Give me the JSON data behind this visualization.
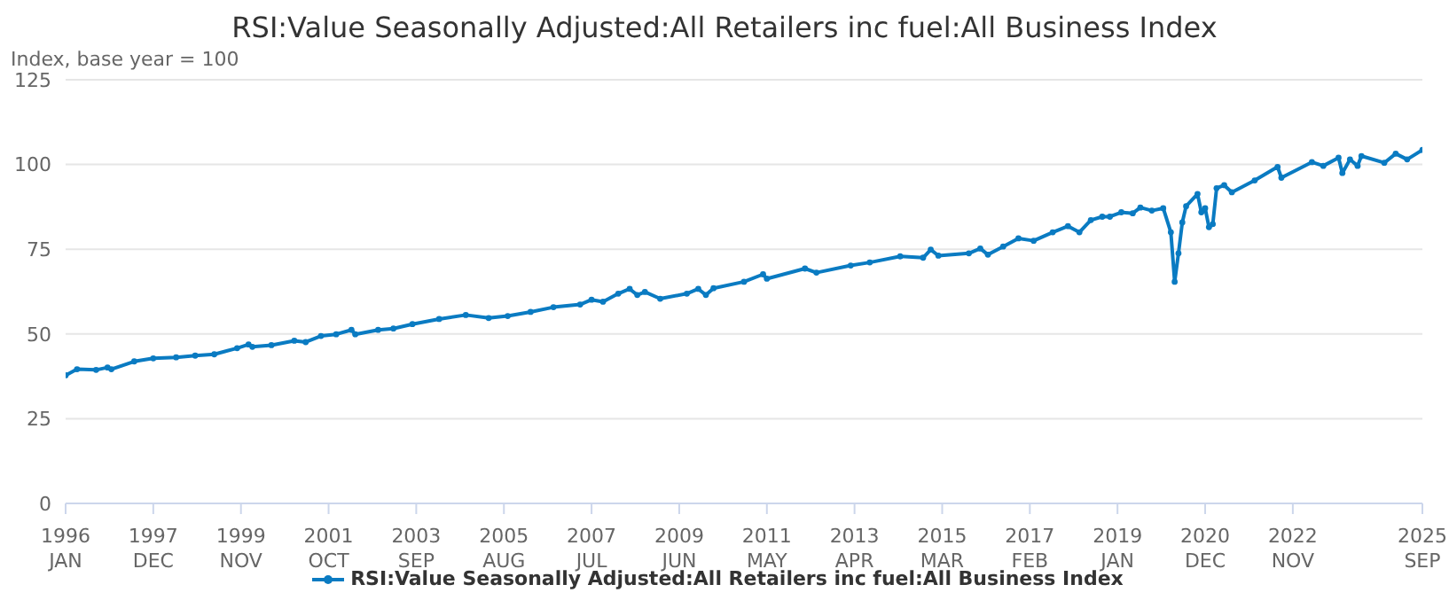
{
  "chart_data": {
    "type": "line",
    "title": "RSI:Value Seasonally Adjusted:All Retailers inc fuel:All Business Index",
    "ylabel": "Index, base year = 100",
    "x": [
      "1996-01",
      "1996-04",
      "1996-09",
      "1996-12",
      "1997-01",
      "1997-07",
      "1997-12",
      "1998-06",
      "1998-11",
      "1999-04",
      "1999-10",
      "2000-01",
      "2000-02",
      "2000-07",
      "2001-01",
      "2001-04",
      "2001-08",
      "2001-12",
      "2002-04",
      "2002-05",
      "2002-11",
      "2003-03",
      "2003-08",
      "2004-03",
      "2004-10",
      "2005-04",
      "2005-09",
      "2006-03",
      "2006-09",
      "2007-04",
      "2007-07",
      "2007-10",
      "2008-02",
      "2008-05",
      "2008-07",
      "2008-09",
      "2009-01",
      "2009-08",
      "2009-11",
      "2010-01",
      "2010-03",
      "2010-11",
      "2011-04",
      "2011-05",
      "2012-03",
      "2012-06",
      "2013-03",
      "2013-08",
      "2014-04",
      "2014-10",
      "2014-12",
      "2015-02",
      "2015-10",
      "2016-01",
      "2016-03",
      "2016-07",
      "2016-11",
      "2017-03",
      "2017-08",
      "2017-12",
      "2018-03",
      "2018-06",
      "2018-09",
      "2018-11",
      "2019-02",
      "2019-05",
      "2019-07",
      "2019-10",
      "2020-01",
      "2020-03",
      "2020-04",
      "2020-05",
      "2020-06",
      "2020-07",
      "2020-10",
      "2020-11",
      "2020-12",
      "2021-01",
      "2021-02",
      "2021-03",
      "2021-05",
      "2021-07",
      "2022-01",
      "2022-07",
      "2022-08",
      "2023-04",
      "2023-07",
      "2023-11",
      "2023-12",
      "2024-02",
      "2024-04",
      "2024-05",
      "2024-11",
      "2025-02",
      "2025-05",
      "2025-09"
    ],
    "series": [
      {
        "name": "RSI:Value Seasonally Adjusted:All Retailers inc fuel:All Business Index",
        "color": "#0a7bc2",
        "values": [
          37.8,
          39.6,
          39.4,
          40.1,
          39.6,
          41.9,
          42.8,
          43.1,
          43.6,
          44.0,
          45.8,
          46.9,
          46.2,
          46.7,
          48.0,
          47.6,
          49.4,
          49.9,
          51.2,
          49.9,
          51.2,
          51.6,
          52.9,
          54.4,
          55.6,
          54.7,
          55.3,
          56.5,
          57.9,
          58.7,
          60.1,
          59.5,
          61.9,
          63.3,
          61.5,
          62.4,
          60.4,
          61.9,
          63.3,
          61.5,
          63.5,
          65.4,
          67.6,
          66.3,
          69.3,
          68.1,
          70.2,
          71.1,
          72.9,
          72.5,
          74.9,
          73.1,
          73.8,
          75.2,
          73.4,
          75.8,
          78.2,
          77.5,
          80.0,
          81.8,
          80.0,
          83.6,
          84.6,
          84.6,
          85.9,
          85.6,
          87.3,
          86.4,
          87.1,
          80.0,
          65.4,
          73.8,
          82.9,
          87.7,
          91.3,
          85.9,
          87.1,
          81.5,
          82.4,
          93.0,
          93.9,
          91.8,
          95.3,
          99.3,
          96.1,
          100.7,
          99.6,
          102.0,
          97.5,
          101.5,
          99.6,
          102.5,
          100.5,
          103.2,
          101.5,
          104.3
        ]
      }
    ],
    "xlim": [
      "1996-01",
      "2025-09"
    ],
    "xticks": [
      {
        "value": "1996-01",
        "label": "1996 JAN"
      },
      {
        "value": "1997-12",
        "label": "1997 DEC"
      },
      {
        "value": "1999-11",
        "label": "1999 NOV"
      },
      {
        "value": "2001-10",
        "label": "2001 OCT"
      },
      {
        "value": "2003-09",
        "label": "2003 SEP"
      },
      {
        "value": "2005-08",
        "label": "2005 AUG"
      },
      {
        "value": "2007-07",
        "label": "2007 JUL"
      },
      {
        "value": "2009-06",
        "label": "2009 JUN"
      },
      {
        "value": "2011-05",
        "label": "2011 MAY"
      },
      {
        "value": "2013-04",
        "label": "2013 APR"
      },
      {
        "value": "2015-03",
        "label": "2015 MAR"
      },
      {
        "value": "2017-02",
        "label": "2017 FEB"
      },
      {
        "value": "2019-01",
        "label": "2019 JAN"
      },
      {
        "value": "2020-12",
        "label": "2020 DEC"
      },
      {
        "value": "2022-11",
        "label": "2022 NOV"
      },
      {
        "value": "2025-09",
        "label": "2025 SEP"
      }
    ],
    "ylim": [
      0,
      125
    ],
    "yticks": [
      0,
      25,
      50,
      75,
      100,
      125
    ],
    "grid": "y",
    "legend": "bottom",
    "marker": "circle",
    "line_style": "solid"
  }
}
